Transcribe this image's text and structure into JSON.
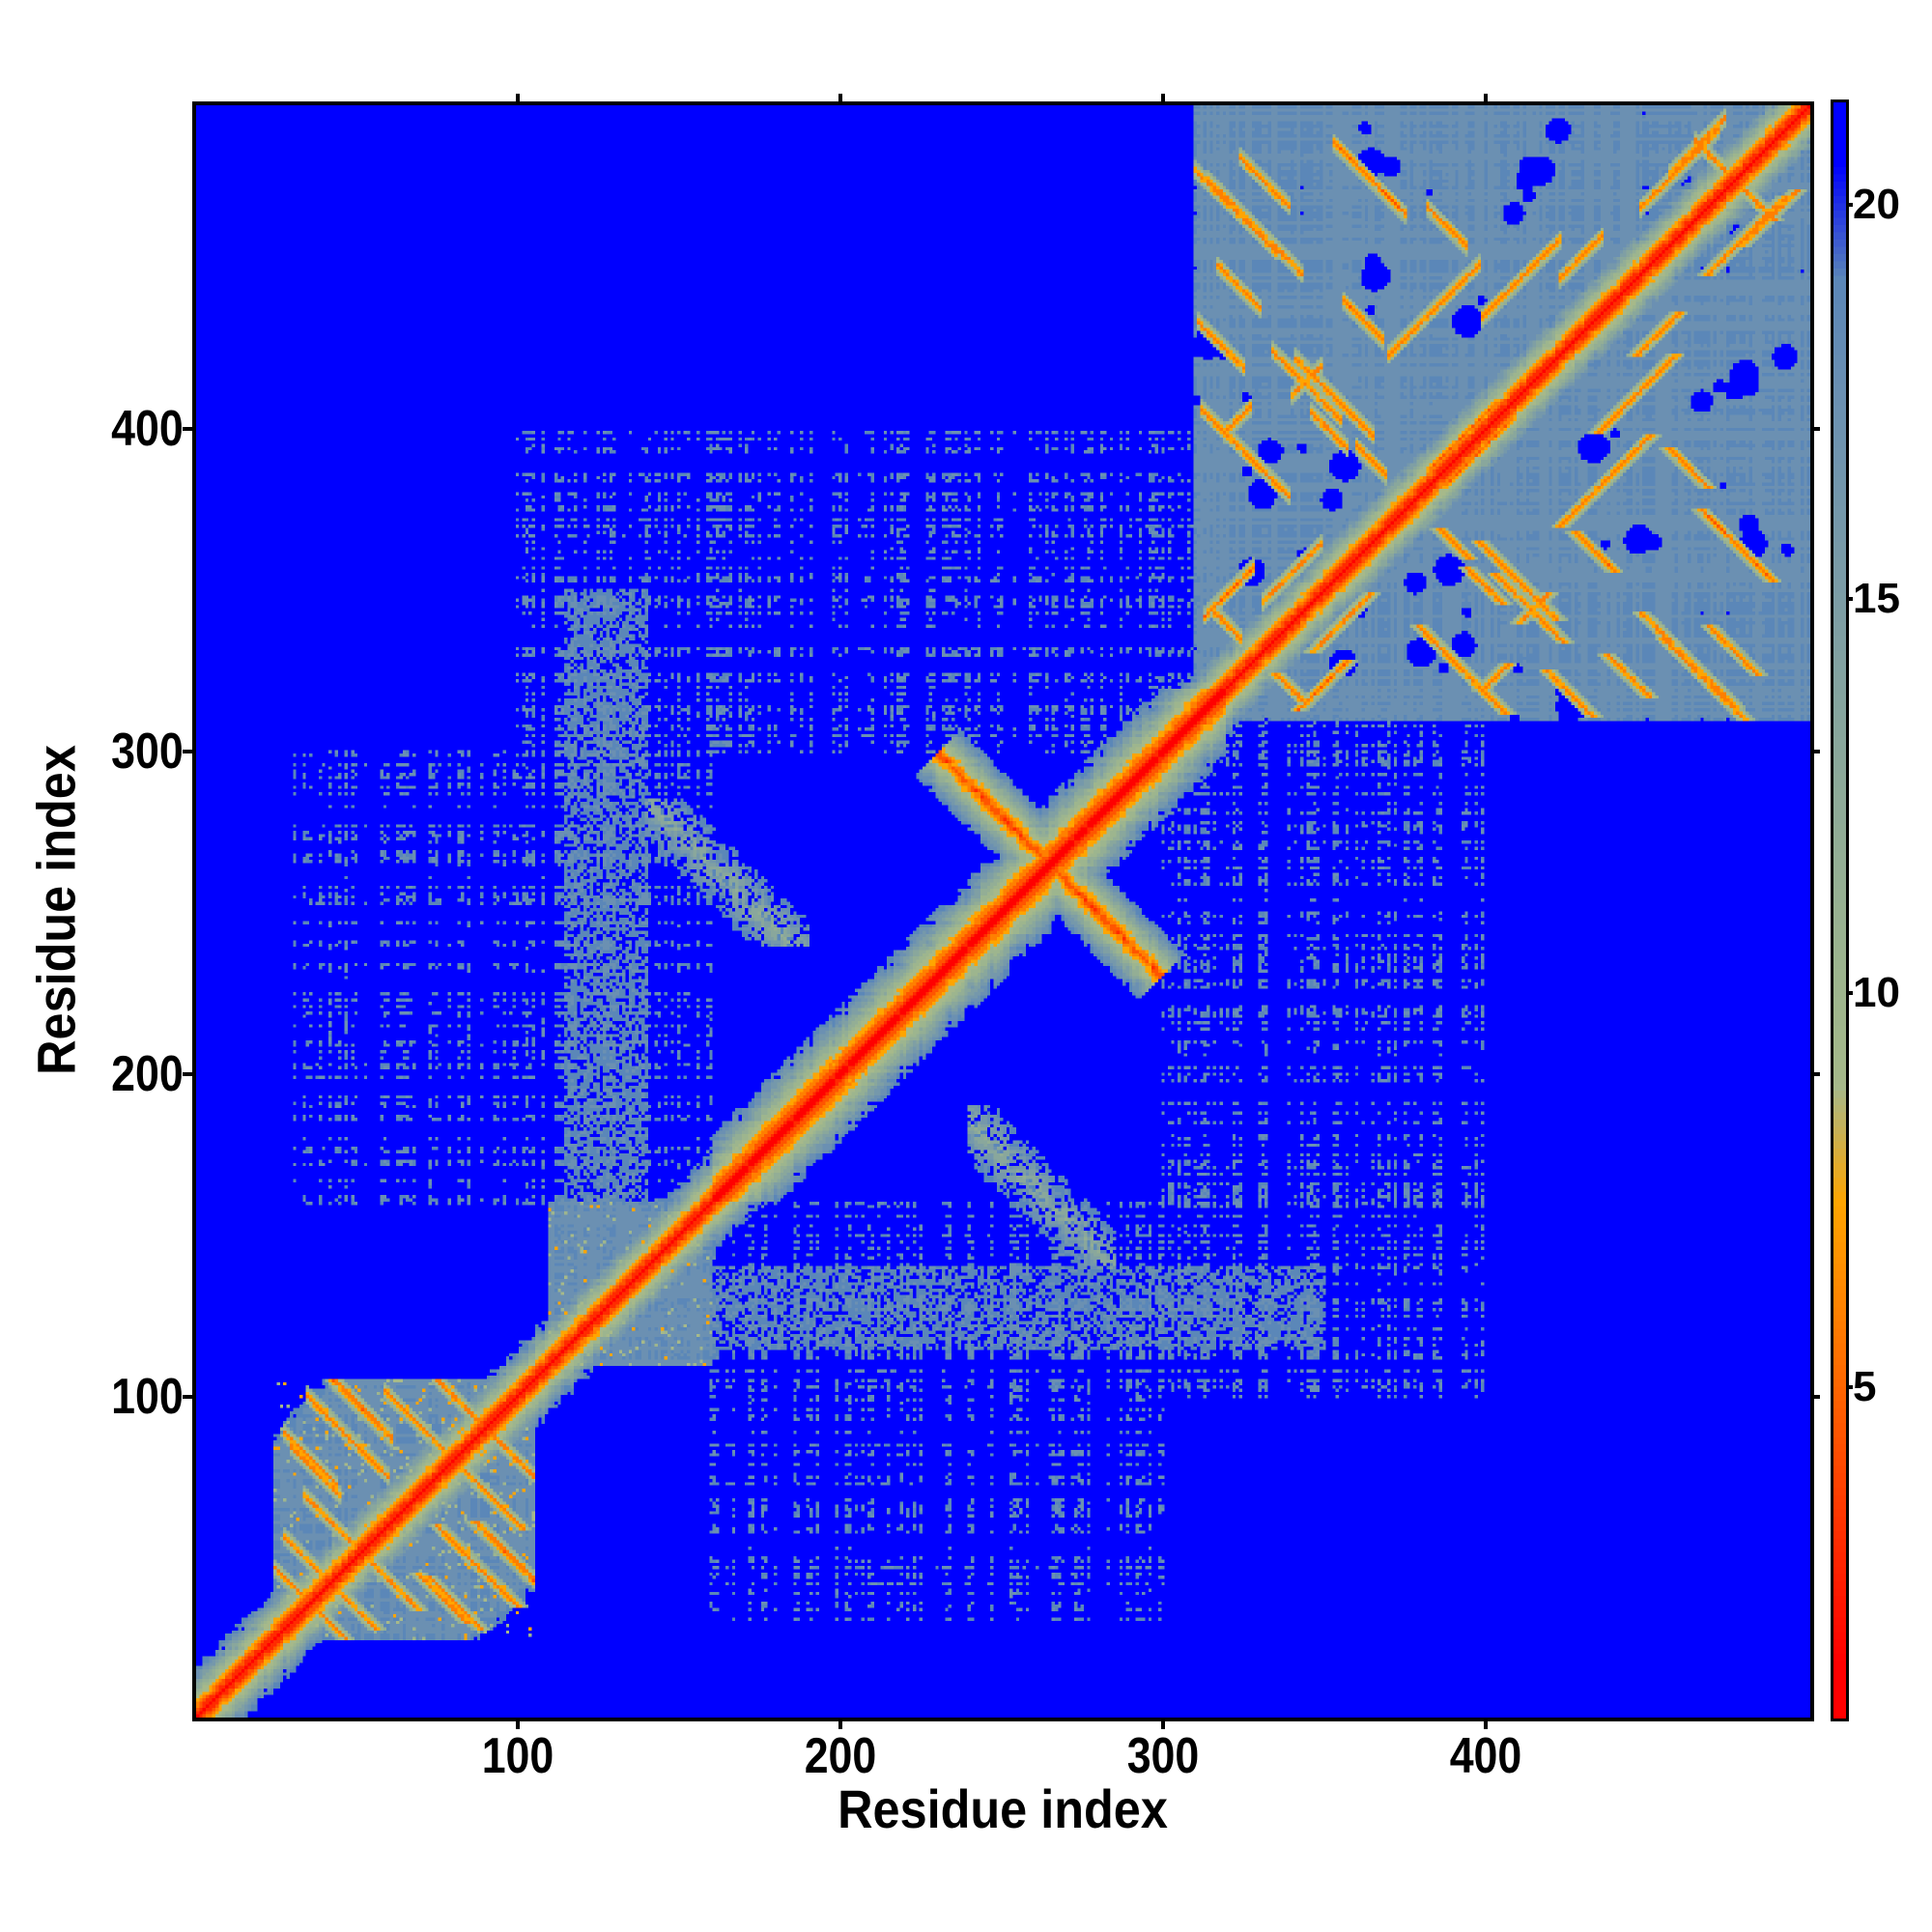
{
  "chart_data": {
    "type": "heatmap",
    "title": "",
    "xlabel": "Residue index",
    "ylabel": "Residue index",
    "xlim": [
      0.5,
      500.5
    ],
    "ylim": [
      0.5,
      500.5
    ],
    "n_residues": 500,
    "xticks": [
      "100",
      "200",
      "300",
      "400"
    ],
    "yticks": [
      "100",
      "200",
      "300",
      "400"
    ],
    "xtick_values": [
      100,
      200,
      300,
      400
    ],
    "ytick_values": [
      100,
      200,
      300,
      400
    ],
    "colorbar": {
      "range": [
        0.8,
        21.3
      ],
      "ticks": [
        "5",
        "10",
        "15",
        "20"
      ],
      "tick_values": [
        5,
        10,
        15,
        20
      ],
      "levels": 14,
      "colors": [
        "#ff0000",
        "#ff2a00",
        "#ff5500",
        "#ff7f00",
        "#ffa500",
        "#a6b98a",
        "#9db58e",
        "#93ae95",
        "#89a79c",
        "#7f9fa4",
        "#7598ab",
        "#6b90b2",
        "#5b87b8",
        "#0000ff"
      ]
    },
    "features": {
      "diagonal": {
        "from": 1,
        "to": 500
      },
      "domains": [
        {
          "start": 25,
          "end": 105
        },
        {
          "start": 110,
          "end": 160
        },
        {
          "start": 310,
          "end": 500
        }
      ],
      "antiparallel_contacts": [
        {
          "center": 265,
          "half_length": 35
        },
        {
          "i_range": [
            140,
            190
          ],
          "j_range": [
            240,
            285
          ]
        }
      ],
      "sparse_contact_regions": [
        {
          "i_range": [
            100,
            320
          ],
          "j_range": [
            300,
            400
          ]
        },
        {
          "i_range": [
            110,
            140
          ],
          "j_range": [
            140,
            350
          ]
        },
        {
          "i_range": [
            30,
            160
          ],
          "j_range": [
            160,
            300
          ]
        }
      ]
    }
  }
}
